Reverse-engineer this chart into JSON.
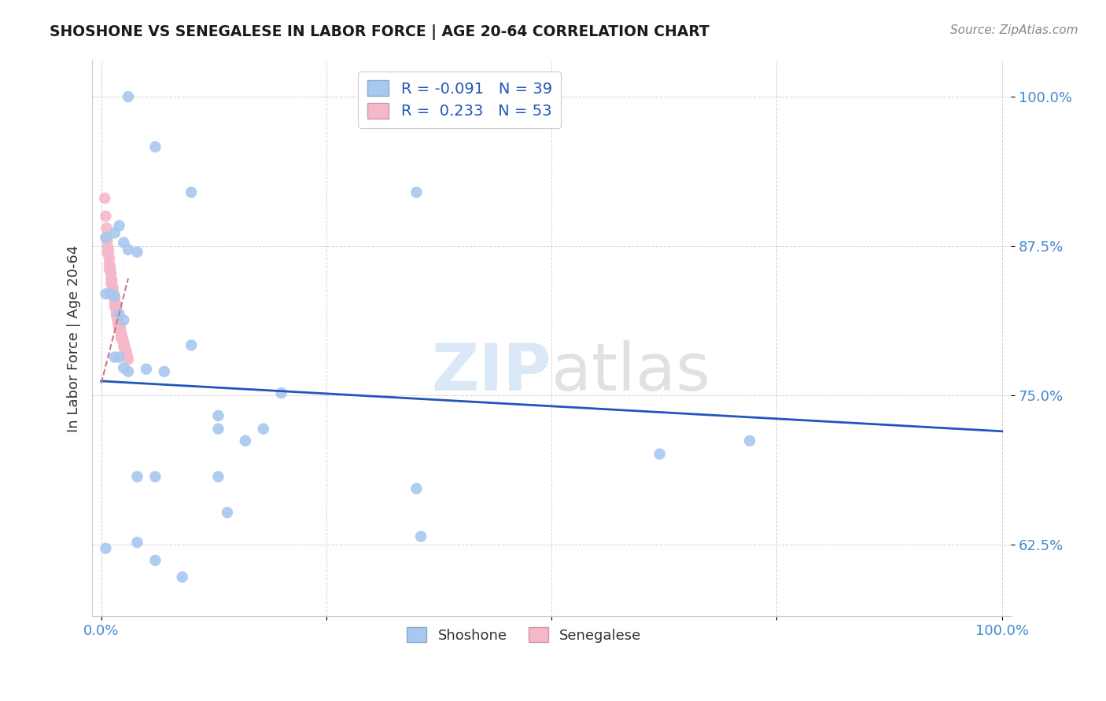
{
  "title": "SHOSHONE VS SENEGALESE IN LABOR FORCE | AGE 20-64 CORRELATION CHART",
  "source": "Source: ZipAtlas.com",
  "ylabel": "In Labor Force | Age 20-64",
  "xlim": [
    -0.01,
    1.01
  ],
  "ylim": [
    0.565,
    1.03
  ],
  "xticks": [
    0.0,
    0.25,
    0.5,
    0.75,
    1.0
  ],
  "xticklabels": [
    "0.0%",
    "",
    "",
    "",
    "100.0%"
  ],
  "yticks": [
    0.625,
    0.75,
    0.875,
    1.0
  ],
  "yticklabels": [
    "62.5%",
    "75.0%",
    "87.5%",
    "100.0%"
  ],
  "watermark_zip": "ZIP",
  "watermark_atlas": "atlas",
  "legend_R1": "-0.091",
  "legend_N1": "39",
  "legend_R2": "0.233",
  "legend_N2": "53",
  "shoshone_x": [
    0.03,
    0.06,
    0.1,
    0.35,
    0.005,
    0.015,
    0.02,
    0.025,
    0.03,
    0.04,
    0.005,
    0.01,
    0.015,
    0.02,
    0.025,
    0.015,
    0.02,
    0.025,
    0.03,
    0.05,
    0.07,
    0.1,
    0.13,
    0.13,
    0.16,
    0.18,
    0.2,
    0.04,
    0.06,
    0.13,
    0.14,
    0.35,
    0.355,
    0.62,
    0.72,
    0.005,
    0.04,
    0.06,
    0.09
  ],
  "shoshone_y": [
    1.0,
    0.958,
    0.92,
    0.92,
    0.882,
    0.886,
    0.892,
    0.878,
    0.872,
    0.87,
    0.835,
    0.835,
    0.833,
    0.818,
    0.813,
    0.782,
    0.782,
    0.773,
    0.77,
    0.772,
    0.77,
    0.792,
    0.733,
    0.722,
    0.712,
    0.722,
    0.752,
    0.682,
    0.682,
    0.682,
    0.652,
    0.672,
    0.632,
    0.701,
    0.712,
    0.622,
    0.627,
    0.612,
    0.598
  ],
  "senegalese_x": [
    0.004,
    0.005,
    0.006,
    0.007,
    0.008,
    0.009,
    0.01,
    0.011,
    0.012,
    0.013,
    0.014,
    0.015,
    0.016,
    0.017,
    0.018,
    0.019,
    0.02,
    0.021,
    0.022,
    0.023,
    0.024,
    0.025,
    0.026,
    0.027,
    0.028,
    0.029,
    0.03,
    0.006,
    0.008,
    0.01,
    0.012,
    0.014,
    0.016,
    0.018,
    0.02,
    0.022,
    0.007,
    0.009,
    0.011,
    0.013,
    0.015,
    0.017,
    0.019,
    0.021,
    0.023,
    0.025,
    0.007,
    0.009,
    0.011,
    0.013,
    0.015,
    0.017,
    0.019
  ],
  "senegalese_y": [
    0.915,
    0.9,
    0.89,
    0.88,
    0.872,
    0.865,
    0.858,
    0.852,
    0.846,
    0.84,
    0.835,
    0.832,
    0.827,
    0.823,
    0.818,
    0.814,
    0.81,
    0.807,
    0.803,
    0.8,
    0.797,
    0.794,
    0.791,
    0.788,
    0.786,
    0.783,
    0.78,
    0.882,
    0.868,
    0.854,
    0.842,
    0.832,
    0.823,
    0.814,
    0.806,
    0.799,
    0.875,
    0.86,
    0.848,
    0.838,
    0.828,
    0.819,
    0.811,
    0.804,
    0.797,
    0.791,
    0.87,
    0.856,
    0.844,
    0.834,
    0.825,
    0.817,
    0.809
  ],
  "shoshone_trend_x0": 0.0,
  "shoshone_trend_y0": 0.762,
  "shoshone_trend_x1": 1.0,
  "shoshone_trend_y1": 0.72,
  "senegalese_trend_x0": 0.0,
  "senegalese_trend_y0": 0.76,
  "senegalese_trend_x1": 0.03,
  "senegalese_trend_y1": 0.848,
  "dot_size": 110,
  "shoshone_color": "#a8c8f0",
  "senegalese_color": "#f5b8c8",
  "trend_shoshone_color": "#2255bb",
  "trend_senegalese_color": "#cc7788",
  "background_color": "#ffffff",
  "grid_color": "#cccccc",
  "title_color": "#1a1a1a",
  "axis_label_color": "#333333",
  "tick_color": "#4488cc",
  "source_color": "#888888"
}
